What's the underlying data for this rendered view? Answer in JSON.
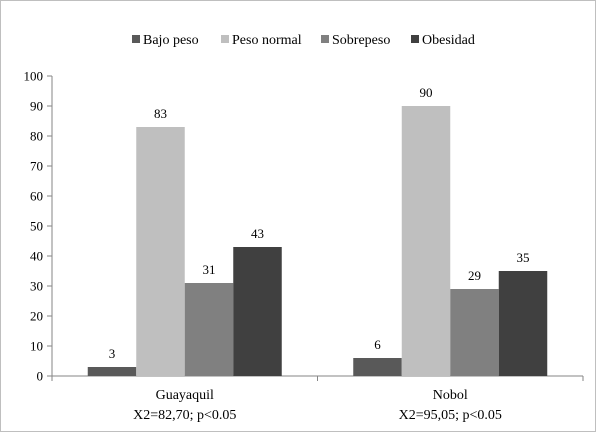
{
  "chart_data": {
    "type": "bar",
    "categories": [
      "Guayaquil",
      "Nobol"
    ],
    "category_sublabels": [
      "X2=82,70; p<0.05",
      "X2=95,05; p<0.05"
    ],
    "series": [
      {
        "name": "Bajo peso",
        "color": "#595959",
        "values": [
          3,
          6
        ]
      },
      {
        "name": "Peso normal",
        "color": "#bfbfbf",
        "values": [
          83,
          90
        ]
      },
      {
        "name": "Sobrepeso",
        "color": "#808080",
        "values": [
          31,
          29
        ]
      },
      {
        "name": "Obesidad",
        "color": "#404040",
        "values": [
          43,
          35
        ]
      }
    ],
    "y_ticks": [
      "0",
      "10",
      "20",
      "30",
      "40",
      "50",
      "60",
      "70",
      "80",
      "90",
      "100"
    ],
    "ylim": [
      0,
      100
    ],
    "grid": false,
    "legend_position": "top"
  }
}
